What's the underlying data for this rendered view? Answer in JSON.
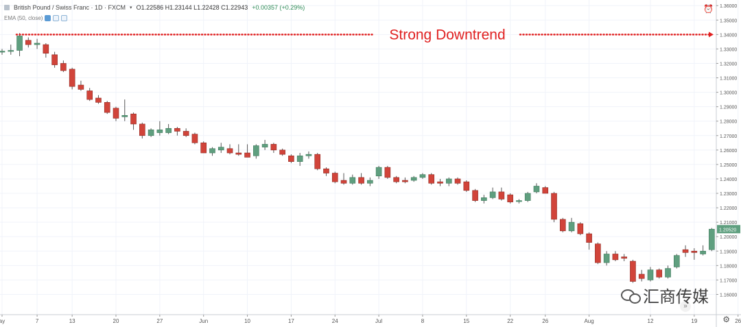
{
  "header": {
    "symbol": "British Pound / Swiss Franc · 1D · FXCM",
    "ohlc": "O1.22586  H1.23144  L1.22428  C1.22943",
    "change": "+0.00357 (+0.29%)"
  },
  "indicator": {
    "label": "EMA (50, close)"
  },
  "annotation": {
    "text": "Strong Downtrend"
  },
  "watermark": {
    "text": "汇商传媒"
  },
  "colors": {
    "up": "#5f9f7f",
    "down": "#d1443a",
    "annotation": "#e02020",
    "grid": "#f0f3fa"
  },
  "chart_data": {
    "type": "candlestick",
    "title": "British Pound / Swiss Franc · 1D · FXCM",
    "ylim": [
      1.155,
      1.362
    ],
    "y_ticks": [
      1.36,
      1.35,
      1.34,
      1.33,
      1.32,
      1.31,
      1.3,
      1.29,
      1.28,
      1.27,
      1.26,
      1.25,
      1.24,
      1.23,
      1.22,
      1.21,
      1.2,
      1.19,
      1.18,
      1.17,
      1.16
    ],
    "y_tick_labels": [
      "1.36000",
      "1.35000",
      "1.34000",
      "1.33000",
      "1.32000",
      "1.31000",
      "1.30000",
      "1.29000",
      "1.28000",
      "1.27000",
      "1.26000",
      "1.25000",
      "1.24000",
      "1.23000",
      "1.22000",
      "1.21000",
      "1.20000",
      "1.19000",
      "1.18000",
      "1.17000",
      "1.16000"
    ],
    "x_tick_labels": [
      "ay",
      "7",
      "13",
      "20",
      "27",
      "Jun",
      "10",
      "17",
      "24",
      "Jul",
      "8",
      "15",
      "22",
      "26",
      "Aug",
      "12",
      "19",
      "26"
    ],
    "x_tick_index": [
      0,
      4,
      8,
      13,
      18,
      23,
      28,
      33,
      38,
      43,
      48,
      53,
      58,
      62,
      67,
      74,
      79,
      84
    ],
    "last_price": "1.20520",
    "candles": [
      {
        "o": 1.328,
        "h": 1.33,
        "l": 1.326,
        "c": 1.3285
      },
      {
        "o": 1.3285,
        "h": 1.333,
        "l": 1.326,
        "c": 1.329
      },
      {
        "o": 1.329,
        "h": 1.341,
        "l": 1.325,
        "c": 1.339
      },
      {
        "o": 1.336,
        "h": 1.338,
        "l": 1.331,
        "c": 1.333
      },
      {
        "o": 1.333,
        "h": 1.337,
        "l": 1.33,
        "c": 1.334
      },
      {
        "o": 1.333,
        "h": 1.334,
        "l": 1.324,
        "c": 1.327
      },
      {
        "o": 1.326,
        "h": 1.328,
        "l": 1.317,
        "c": 1.319
      },
      {
        "o": 1.32,
        "h": 1.322,
        "l": 1.314,
        "c": 1.315
      },
      {
        "o": 1.316,
        "h": 1.317,
        "l": 1.302,
        "c": 1.304
      },
      {
        "o": 1.305,
        "h": 1.308,
        "l": 1.301,
        "c": 1.302
      },
      {
        "o": 1.301,
        "h": 1.303,
        "l": 1.294,
        "c": 1.295
      },
      {
        "o": 1.296,
        "h": 1.298,
        "l": 1.292,
        "c": 1.293
      },
      {
        "o": 1.293,
        "h": 1.294,
        "l": 1.285,
        "c": 1.286
      },
      {
        "o": 1.289,
        "h": 1.29,
        "l": 1.28,
        "c": 1.282
      },
      {
        "o": 1.283,
        "h": 1.295,
        "l": 1.28,
        "c": 1.284
      },
      {
        "o": 1.285,
        "h": 1.286,
        "l": 1.274,
        "c": 1.278
      },
      {
        "o": 1.278,
        "h": 1.279,
        "l": 1.268,
        "c": 1.27
      },
      {
        "o": 1.27,
        "h": 1.275,
        "l": 1.269,
        "c": 1.274
      },
      {
        "o": 1.272,
        "h": 1.28,
        "l": 1.27,
        "c": 1.274
      },
      {
        "o": 1.272,
        "h": 1.278,
        "l": 1.271,
        "c": 1.275
      },
      {
        "o": 1.275,
        "h": 1.276,
        "l": 1.27,
        "c": 1.273
      },
      {
        "o": 1.273,
        "h": 1.275,
        "l": 1.269,
        "c": 1.27
      },
      {
        "o": 1.271,
        "h": 1.272,
        "l": 1.264,
        "c": 1.265
      },
      {
        "o": 1.265,
        "h": 1.266,
        "l": 1.258,
        "c": 1.258
      },
      {
        "o": 1.258,
        "h": 1.262,
        "l": 1.256,
        "c": 1.261
      },
      {
        "o": 1.26,
        "h": 1.265,
        "l": 1.258,
        "c": 1.262
      },
      {
        "o": 1.261,
        "h": 1.264,
        "l": 1.257,
        "c": 1.258
      },
      {
        "o": 1.258,
        "h": 1.264,
        "l": 1.256,
        "c": 1.257
      },
      {
        "o": 1.258,
        "h": 1.264,
        "l": 1.255,
        "c": 1.255
      },
      {
        "o": 1.256,
        "h": 1.264,
        "l": 1.254,
        "c": 1.263
      },
      {
        "o": 1.262,
        "h": 1.267,
        "l": 1.26,
        "c": 1.264
      },
      {
        "o": 1.264,
        "h": 1.265,
        "l": 1.258,
        "c": 1.26
      },
      {
        "o": 1.26,
        "h": 1.261,
        "l": 1.256,
        "c": 1.257
      },
      {
        "o": 1.256,
        "h": 1.257,
        "l": 1.251,
        "c": 1.252
      },
      {
        "o": 1.252,
        "h": 1.258,
        "l": 1.249,
        "c": 1.256
      },
      {
        "o": 1.256,
        "h": 1.259,
        "l": 1.254,
        "c": 1.257
      },
      {
        "o": 1.257,
        "h": 1.258,
        "l": 1.246,
        "c": 1.247
      },
      {
        "o": 1.247,
        "h": 1.248,
        "l": 1.242,
        "c": 1.244
      },
      {
        "o": 1.244,
        "h": 1.245,
        "l": 1.237,
        "c": 1.238
      },
      {
        "o": 1.239,
        "h": 1.244,
        "l": 1.236,
        "c": 1.237
      },
      {
        "o": 1.237,
        "h": 1.243,
        "l": 1.236,
        "c": 1.241
      },
      {
        "o": 1.241,
        "h": 1.244,
        "l": 1.236,
        "c": 1.237
      },
      {
        "o": 1.237,
        "h": 1.241,
        "l": 1.235,
        "c": 1.239
      },
      {
        "o": 1.242,
        "h": 1.249,
        "l": 1.24,
        "c": 1.248
      },
      {
        "o": 1.248,
        "h": 1.249,
        "l": 1.24,
        "c": 1.241
      },
      {
        "o": 1.241,
        "h": 1.242,
        "l": 1.237,
        "c": 1.238
      },
      {
        "o": 1.239,
        "h": 1.241,
        "l": 1.237,
        "c": 1.238
      },
      {
        "o": 1.239,
        "h": 1.242,
        "l": 1.238,
        "c": 1.241
      },
      {
        "o": 1.241,
        "h": 1.244,
        "l": 1.24,
        "c": 1.243
      },
      {
        "o": 1.243,
        "h": 1.244,
        "l": 1.236,
        "c": 1.237
      },
      {
        "o": 1.238,
        "h": 1.24,
        "l": 1.235,
        "c": 1.237
      },
      {
        "o": 1.237,
        "h": 1.241,
        "l": 1.235,
        "c": 1.24
      },
      {
        "o": 1.24,
        "h": 1.241,
        "l": 1.236,
        "c": 1.237
      },
      {
        "o": 1.238,
        "h": 1.239,
        "l": 1.231,
        "c": 1.232
      },
      {
        "o": 1.232,
        "h": 1.233,
        "l": 1.224,
        "c": 1.225
      },
      {
        "o": 1.225,
        "h": 1.229,
        "l": 1.223,
        "c": 1.227
      },
      {
        "o": 1.227,
        "h": 1.234,
        "l": 1.226,
        "c": 1.231
      },
      {
        "o": 1.231,
        "h": 1.234,
        "l": 1.225,
        "c": 1.226
      },
      {
        "o": 1.229,
        "h": 1.23,
        "l": 1.223,
        "c": 1.224
      },
      {
        "o": 1.225,
        "h": 1.226,
        "l": 1.223,
        "c": 1.225
      },
      {
        "o": 1.225,
        "h": 1.231,
        "l": 1.224,
        "c": 1.23
      },
      {
        "o": 1.231,
        "h": 1.237,
        "l": 1.23,
        "c": 1.235
      },
      {
        "o": 1.234,
        "h": 1.235,
        "l": 1.23,
        "c": 1.23
      },
      {
        "o": 1.23,
        "h": 1.231,
        "l": 1.21,
        "c": 1.212
      },
      {
        "o": 1.212,
        "h": 1.213,
        "l": 1.203,
        "c": 1.204
      },
      {
        "o": 1.204,
        "h": 1.213,
        "l": 1.203,
        "c": 1.21
      },
      {
        "o": 1.209,
        "h": 1.21,
        "l": 1.201,
        "c": 1.202
      },
      {
        "o": 1.202,
        "h": 1.203,
        "l": 1.191,
        "c": 1.196
      },
      {
        "o": 1.195,
        "h": 1.196,
        "l": 1.181,
        "c": 1.182
      },
      {
        "o": 1.182,
        "h": 1.19,
        "l": 1.18,
        "c": 1.188
      },
      {
        "o": 1.188,
        "h": 1.19,
        "l": 1.183,
        "c": 1.184
      },
      {
        "o": 1.186,
        "h": 1.188,
        "l": 1.183,
        "c": 1.185
      },
      {
        "o": 1.183,
        "h": 1.184,
        "l": 1.168,
        "c": 1.169
      },
      {
        "o": 1.174,
        "h": 1.177,
        "l": 1.169,
        "c": 1.171
      },
      {
        "o": 1.17,
        "h": 1.179,
        "l": 1.169,
        "c": 1.177
      },
      {
        "o": 1.177,
        "h": 1.178,
        "l": 1.171,
        "c": 1.172
      },
      {
        "o": 1.172,
        "h": 1.18,
        "l": 1.171,
        "c": 1.178
      },
      {
        "o": 1.179,
        "h": 1.188,
        "l": 1.178,
        "c": 1.187
      },
      {
        "o": 1.191,
        "h": 1.194,
        "l": 1.186,
        "c": 1.189
      },
      {
        "o": 1.19,
        "h": 1.192,
        "l": 1.184,
        "c": 1.189
      },
      {
        "o": 1.188,
        "h": 1.194,
        "l": 1.187,
        "c": 1.19
      },
      {
        "o": 1.191,
        "h": 1.206,
        "l": 1.19,
        "c": 1.2052
      }
    ],
    "trend_line_y": 1.34
  }
}
